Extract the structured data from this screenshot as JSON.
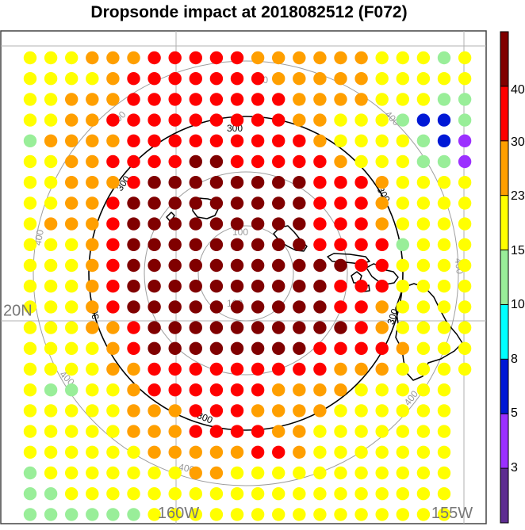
{
  "title": "Dropsonde impact at 2018082512 (F072)",
  "map": {
    "lat_label": "20N",
    "lon_labels": [
      "160W",
      "155W"
    ],
    "inner_circle_label": "100",
    "middle_circle_label": "200",
    "bold_circle_label": "300",
    "outer_circle_label": "400",
    "bold_circle_color": "#000000",
    "range_circle_color": "#9e9e9e",
    "grid_color": "#b0b0b0",
    "island_outline_color": "#000000"
  },
  "colorbar": {
    "ticks": [
      "40",
      "30",
      "23",
      "15",
      "10",
      "8",
      "5",
      "3"
    ],
    "bins": [
      {
        "color": "#5e2d91",
        "range": "0-3"
      },
      {
        "color": "#9b30ff",
        "range": "3-5"
      },
      {
        "color": "#0018d6",
        "range": "5-8"
      },
      {
        "color": "#00ffff",
        "range": "8-10"
      },
      {
        "color": "#99ee99",
        "range": "10-15"
      },
      {
        "color": "#ffff00",
        "range": "15-23"
      },
      {
        "color": "#ff9f00",
        "range": "23-30"
      },
      {
        "color": "#ff0000",
        "range": "30-40"
      },
      {
        "color": "#800000",
        "range": "40+"
      }
    ]
  },
  "grid_dots": {
    "palette": {
      "P": "#9b30ff",
      "B": "#0018d6",
      "G": "#99ee99",
      "Y": "#ffff00",
      "O": "#ff9f00",
      "R": "#ff0000",
      "M": "#800000"
    },
    "rows": [
      "YYYOOORRRRROOOOOOYYYGY",
      "YYYYORRRRRRROOOOOYYYYY",
      "YYOOORRRRRRRROOOOYYYGG",
      "YYOORRRRRRRRROOYYYGBBG",
      "GOOOORRRRRRRRROYYYYGBP",
      "YYOORRRRMMRRRRROYYYGGP",
      "YYOOORMMMMMMMMRRROYYYY",
      "YYOORMMMMMMMMMRRROYYYY",
      "YOOORMMMMMMMMMRRROYYYY",
      "YYYORMMMMMMMMMRRRRGYYY",
      "YYYORMMMMMMMMMMMRRYYYY",
      "YYYORMMMMMMMMMMRRRYYYY",
      "YYYORMMMMMMMMMMRROYYYY",
      "YYYOORMMMMMMMMMMROYYYY",
      "YYYYORMMMMMMMMRRRROYYY",
      "YYYYOORRRRRRRRROOOYYYY",
      "YGGYYORRRRRROOOOYYYYY",
      "YYYYYOOORRROOOOYYYYYY",
      "YYYYYOOORRRROOYYYYYYY",
      "YYYYYYOOOOORROYYYYYYY",
      "GYYYYYYYOOYYYYYYYYYYY",
      "GGYYYYYYYYYYYYYYYYYYY",
      "GGGGGGYYYYYYYYYYYYYYY"
    ]
  }
}
